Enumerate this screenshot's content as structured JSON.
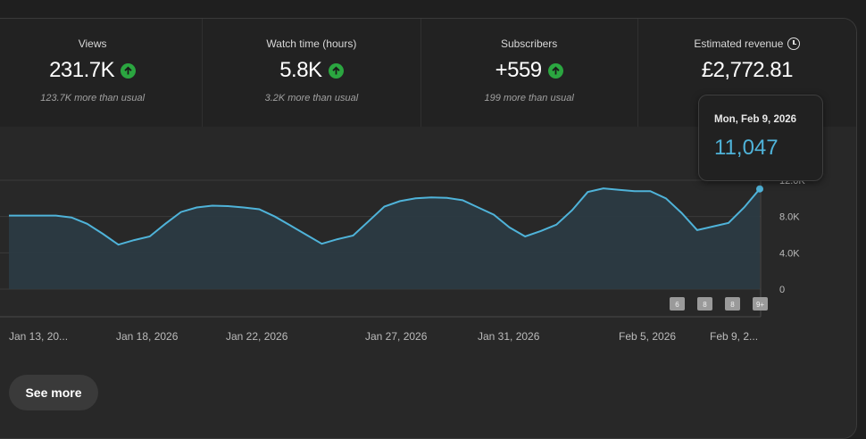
{
  "metrics": [
    {
      "label": "Views",
      "value": "231.7K",
      "sub": "123.7K more than usual",
      "trend": "up"
    },
    {
      "label": "Watch time (hours)",
      "value": "5.8K",
      "sub": "3.2K more than usual",
      "trend": "up"
    },
    {
      "label": "Subscribers",
      "value": "+559",
      "sub": "199 more than usual",
      "trend": "up"
    },
    {
      "label": "Estimated revenue",
      "value": "£2,772.81",
      "sub": "",
      "trend": "none",
      "icon": "clock-icon"
    }
  ],
  "tooltip": {
    "date": "Mon, Feb 9, 2026",
    "value": "11,047"
  },
  "chart_data": {
    "type": "area",
    "x_tick_labels": [
      "Jan 13, 20...",
      "Jan 18, 2026",
      "Jan 22, 2026",
      "Jan 27, 2026",
      "Jan 31, 2026",
      "Feb 5, 2026",
      "Feb 9, 2..."
    ],
    "y_tick_labels": [
      "0",
      "4.0K",
      "8.0K",
      "12.0K"
    ],
    "ylim": [
      0,
      12000
    ],
    "values": [
      8100,
      8100,
      8100,
      8100,
      7900,
      7200,
      6100,
      4900,
      5400,
      5800,
      7200,
      8500,
      9000,
      9200,
      9150,
      9000,
      8800,
      8000,
      7000,
      6000,
      5000,
      5500,
      5900,
      7500,
      9100,
      9700,
      10000,
      10100,
      10050,
      9800,
      9000,
      8200,
      6800,
      5800,
      6400,
      7100,
      8700,
      10700,
      11100,
      10950,
      10800,
      10800,
      10000,
      8400,
      6500,
      6900,
      7300,
      9000,
      11047
    ],
    "line_color": "#4fb3d9",
    "fill_color": "#2b3a42",
    "badges": [
      "6",
      "8",
      "8",
      "9+"
    ]
  },
  "see_more_label": "See more"
}
